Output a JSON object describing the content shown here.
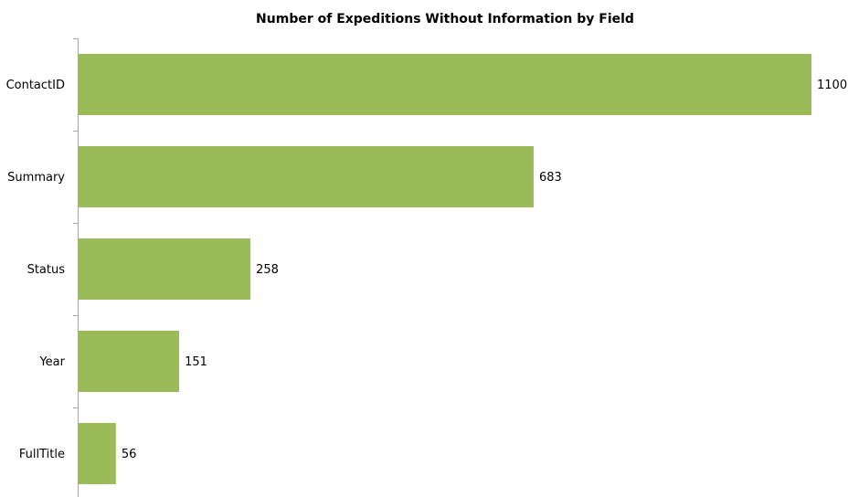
{
  "chart_data": {
    "type": "bar",
    "orientation": "horizontal",
    "title": "Number of Expeditions Without Information by Field",
    "categories": [
      "ContactID",
      "Summary",
      "Status",
      "Year",
      "FullTitle"
    ],
    "values": [
      1100,
      683,
      258,
      151,
      56
    ],
    "color": "#9bbb59"
  }
}
